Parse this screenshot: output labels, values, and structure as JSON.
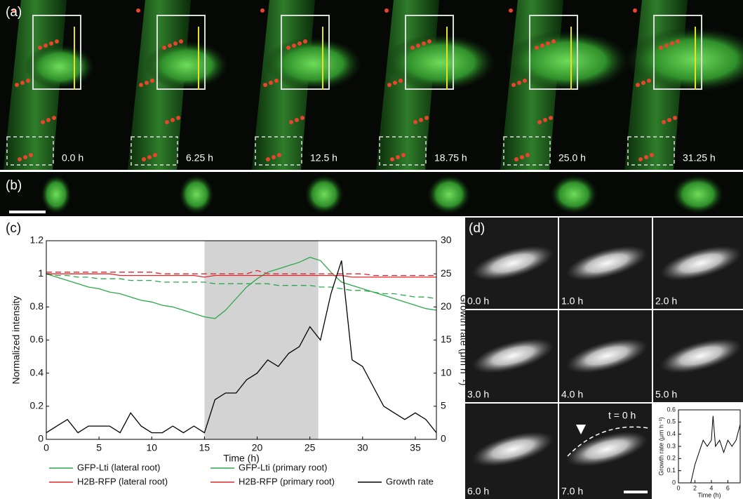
{
  "panels": {
    "a": {
      "label": "(a)",
      "times": [
        "0.0 h",
        "6.25 h",
        "12.5 h",
        "18.75 h",
        "25.0 h",
        "31.25 h"
      ]
    },
    "b": {
      "label": "(b)"
    },
    "c": {
      "label": "(c)"
    },
    "d": {
      "label": "(d)",
      "times": [
        "0.0 h",
        "1.0 h",
        "2.0 h",
        "3.0 h",
        "4.0 h",
        "5.0 h",
        "6.0 h",
        "7.0 h"
      ],
      "annotation": "t = 0 h"
    }
  },
  "chart_data": [
    {
      "type": "line",
      "xlabel": "Time (h)",
      "ylabel": "Normalized intensity",
      "y2label": "Growth rate (μm h⁻¹)",
      "x": [
        0,
        1,
        2,
        3,
        4,
        5,
        6,
        7,
        8,
        9,
        10,
        11,
        12,
        13,
        14,
        15,
        16,
        17,
        18,
        19,
        20,
        21,
        22,
        23,
        24,
        25,
        26,
        27,
        28,
        29,
        30,
        31,
        32,
        33,
        34,
        35,
        36,
        37
      ],
      "xlim": [
        0,
        37
      ],
      "xticks": [
        0,
        5,
        10,
        15,
        20,
        25,
        30,
        35
      ],
      "ylim": [
        0,
        1.2
      ],
      "yticks": [
        0,
        0.2,
        0.4,
        0.6,
        0.8,
        1,
        1.2
      ],
      "y2lim": [
        0,
        30
      ],
      "y2ticks": [
        0,
        5,
        10,
        15,
        20,
        25,
        30
      ],
      "shaded_region": [
        15,
        25.8
      ],
      "shade_color": "#d3d3d3",
      "series": [
        {
          "name": "GFP-Lti (lateral root)",
          "color": "#2ca84a",
          "linestyle": "solid",
          "values": [
            1.0,
            0.98,
            0.96,
            0.94,
            0.92,
            0.91,
            0.89,
            0.88,
            0.86,
            0.84,
            0.83,
            0.81,
            0.8,
            0.78,
            0.76,
            0.74,
            0.73,
            0.78,
            0.85,
            0.92,
            0.97,
            1.01,
            1.03,
            1.05,
            1.07,
            1.1,
            1.08,
            1.01,
            0.95,
            0.93,
            0.91,
            0.89,
            0.87,
            0.85,
            0.83,
            0.81,
            0.79,
            0.78
          ]
        },
        {
          "name": "GFP-Lti (primary root)",
          "color": "#2ca84a",
          "linestyle": "dashed",
          "values": [
            1.0,
            0.99,
            0.99,
            0.98,
            0.98,
            0.97,
            0.97,
            0.97,
            0.96,
            0.96,
            0.96,
            0.95,
            0.95,
            0.95,
            0.95,
            0.95,
            0.94,
            0.94,
            0.94,
            0.94,
            0.94,
            0.94,
            0.93,
            0.93,
            0.93,
            0.93,
            0.92,
            0.92,
            0.91,
            0.9,
            0.9,
            0.89,
            0.88,
            0.88,
            0.87,
            0.86,
            0.86,
            0.85
          ]
        },
        {
          "name": "H2B-RFP (lateral root)",
          "color": "#e0262b",
          "linestyle": "solid",
          "values": [
            1.0,
            1.0,
            1.0,
            1.0,
            1.0,
            1.0,
            1.0,
            0.99,
            0.99,
            0.99,
            0.99,
            0.99,
            0.99,
            0.99,
            0.99,
            0.98,
            0.99,
            0.99,
            0.99,
            0.99,
            0.99,
            0.99,
            0.99,
            0.99,
            0.99,
            0.99,
            0.99,
            0.99,
            0.99,
            0.98,
            0.98,
            0.98,
            0.98,
            0.98,
            0.98,
            0.98,
            0.98,
            0.98
          ]
        },
        {
          "name": "H2B-RFP (primary root)",
          "color": "#e0262b",
          "linestyle": "dashed",
          "values": [
            1.01,
            1.01,
            1.01,
            1.01,
            1.01,
            1.01,
            1.01,
            1.01,
            1.01,
            1.01,
            1.01,
            1.0,
            1.0,
            1.0,
            1.0,
            1.0,
            1.0,
            1.0,
            1.0,
            1.0,
            1.02,
            1.0,
            1.0,
            1.0,
            1.0,
            1.0,
            1.0,
            1.0,
            1.0,
            1.0,
            1.0,
            0.99,
            0.99,
            0.99,
            0.99,
            0.99,
            0.99,
            0.99
          ]
        },
        {
          "name": "Growth rate",
          "color": "#000000",
          "linestyle": "solid",
          "axis": "y2",
          "values": [
            1,
            2,
            3,
            1,
            2,
            2,
            2,
            1,
            4,
            2,
            1,
            1,
            2,
            1,
            2,
            1,
            6,
            7,
            7,
            9,
            10,
            12,
            11,
            13,
            14,
            17,
            15,
            22,
            27,
            12,
            11,
            8,
            5,
            4,
            3,
            4,
            3,
            1
          ]
        }
      ]
    },
    {
      "type": "line",
      "xlabel": "Time (h)",
      "ylabel": "Growth rate (μm h⁻¹)",
      "x": [
        1.5,
        2,
        2.5,
        3,
        3.5,
        4,
        4.2,
        4.5,
        5,
        5.5,
        6,
        6.5,
        7,
        7.5
      ],
      "xlim": [
        0,
        7.5
      ],
      "xticks": [
        0,
        2,
        4,
        6
      ],
      "ylim": [
        0,
        0.6
      ],
      "yticks": [
        0,
        0.1,
        0.2,
        0.3,
        0.4,
        0.5,
        0.6
      ],
      "series": [
        {
          "name": "Growth rate",
          "color": "#000000",
          "linestyle": "solid",
          "values": [
            0,
            0.15,
            0.25,
            0.35,
            0.3,
            0.35,
            0.55,
            0.3,
            0.35,
            0.25,
            0.35,
            0.3,
            0.35,
            0.48
          ]
        }
      ]
    }
  ]
}
